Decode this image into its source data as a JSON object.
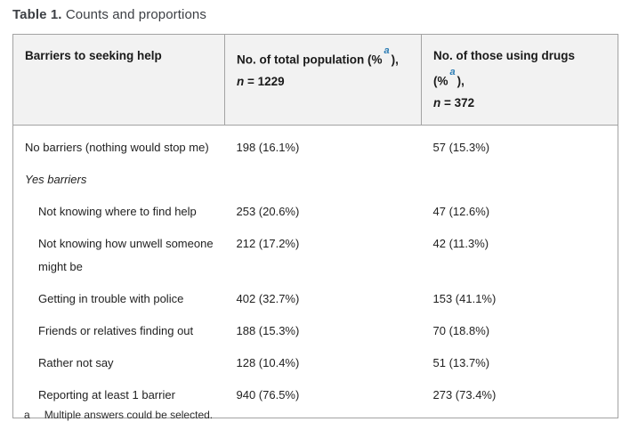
{
  "title": {
    "bold": "Table 1.",
    "rest": " Counts and proportions"
  },
  "colors": {
    "accent_blue": "#2b7cb4",
    "header_bg": "#f2f2f2",
    "border": "#a3a3a3",
    "text": "#1f1f1f"
  },
  "table": {
    "header": {
      "col1": "Barriers to seeking help",
      "col2": {
        "prefix": "No. of total population (%",
        "sup": "a",
        "suffix": "),",
        "n_symbol": "n",
        "n_value": " = 1229"
      },
      "col3": {
        "prefix": "No. of those using drugs (%",
        "sup": "a",
        "suffix": "),",
        "n_symbol": "n",
        "n_value": " = 372"
      }
    },
    "rows": [
      {
        "label": "No barriers (nothing would stop me)",
        "col2": "198 (16.1%)",
        "col3": "57 (15.3%)",
        "indent": false,
        "italic": false
      },
      {
        "label": "Yes barriers",
        "col2": "",
        "col3": "",
        "indent": false,
        "italic": true
      },
      {
        "label": "Not knowing where to find help",
        "col2": "253 (20.6%)",
        "col3": "47 (12.6%)",
        "indent": true,
        "italic": false
      },
      {
        "label": "Not knowing how unwell someone might be",
        "col2": "212 (17.2%)",
        "col3": "42 (11.3%)",
        "indent": true,
        "italic": false
      },
      {
        "label": "Getting in trouble with police",
        "col2": "402 (32.7%)",
        "col3": "153 (41.1%)",
        "indent": true,
        "italic": false
      },
      {
        "label": "Friends or relatives finding out",
        "col2": "188 (15.3%)",
        "col3": "70 (18.8%)",
        "indent": true,
        "italic": false
      },
      {
        "label": "Rather not say",
        "col2": "128 (10.4%)",
        "col3": "51 (13.7%)",
        "indent": true,
        "italic": false
      },
      {
        "label": "Reporting at least 1 barrier",
        "col2": "940 (76.5%)",
        "col3": "273 (73.4%)",
        "indent": true,
        "italic": false
      }
    ]
  },
  "footnote": {
    "marker": "a",
    "text": "Multiple answers could be selected."
  }
}
